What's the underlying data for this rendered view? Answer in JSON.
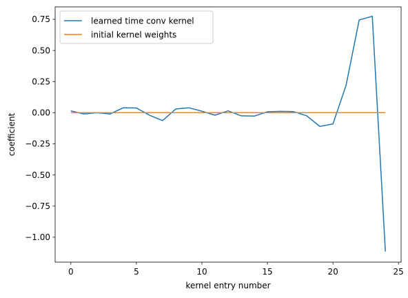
{
  "chart_data": {
    "type": "line",
    "title": "",
    "xlabel": "kernel entry number",
    "ylabel": "coefficient",
    "xlim": [
      -1.2,
      25.2
    ],
    "ylim": [
      -1.2,
      0.85
    ],
    "xticks": [
      0,
      5,
      10,
      15,
      20,
      25
    ],
    "xtick_labels": [
      "0",
      "5",
      "10",
      "15",
      "20",
      "25"
    ],
    "yticks": [
      0.75,
      0.5,
      0.25,
      0.0,
      -0.25,
      -0.5,
      -0.75,
      -1.0
    ],
    "ytick_labels": [
      "0.75",
      "0.50",
      "0.25",
      "0.00",
      "−0.25",
      "−0.50",
      "−0.75",
      "−1.00"
    ],
    "grid": false,
    "legend_position": "top-left",
    "x": [
      0,
      1,
      2,
      3,
      4,
      5,
      6,
      7,
      8,
      9,
      10,
      11,
      12,
      13,
      14,
      15,
      16,
      17,
      18,
      19,
      20,
      21,
      22,
      23,
      24
    ],
    "series": [
      {
        "name": "learned time conv kernel",
        "color": "#1f77b4",
        "values": [
          0.015,
          -0.01,
          0.0,
          -0.01,
          0.04,
          0.038,
          -0.02,
          -0.063,
          0.03,
          0.04,
          0.012,
          -0.02,
          0.015,
          -0.025,
          -0.027,
          0.008,
          0.011,
          0.009,
          -0.025,
          -0.11,
          -0.09,
          0.22,
          0.745,
          0.775,
          -1.115
        ]
      },
      {
        "name": "initial kernel weights",
        "color": "#ff7f0e",
        "values": [
          0,
          0,
          0,
          0,
          0,
          0,
          0,
          0,
          0,
          0,
          0,
          0,
          0,
          0,
          0,
          0,
          0,
          0,
          0,
          0,
          0,
          0,
          0,
          0,
          0
        ]
      }
    ]
  }
}
